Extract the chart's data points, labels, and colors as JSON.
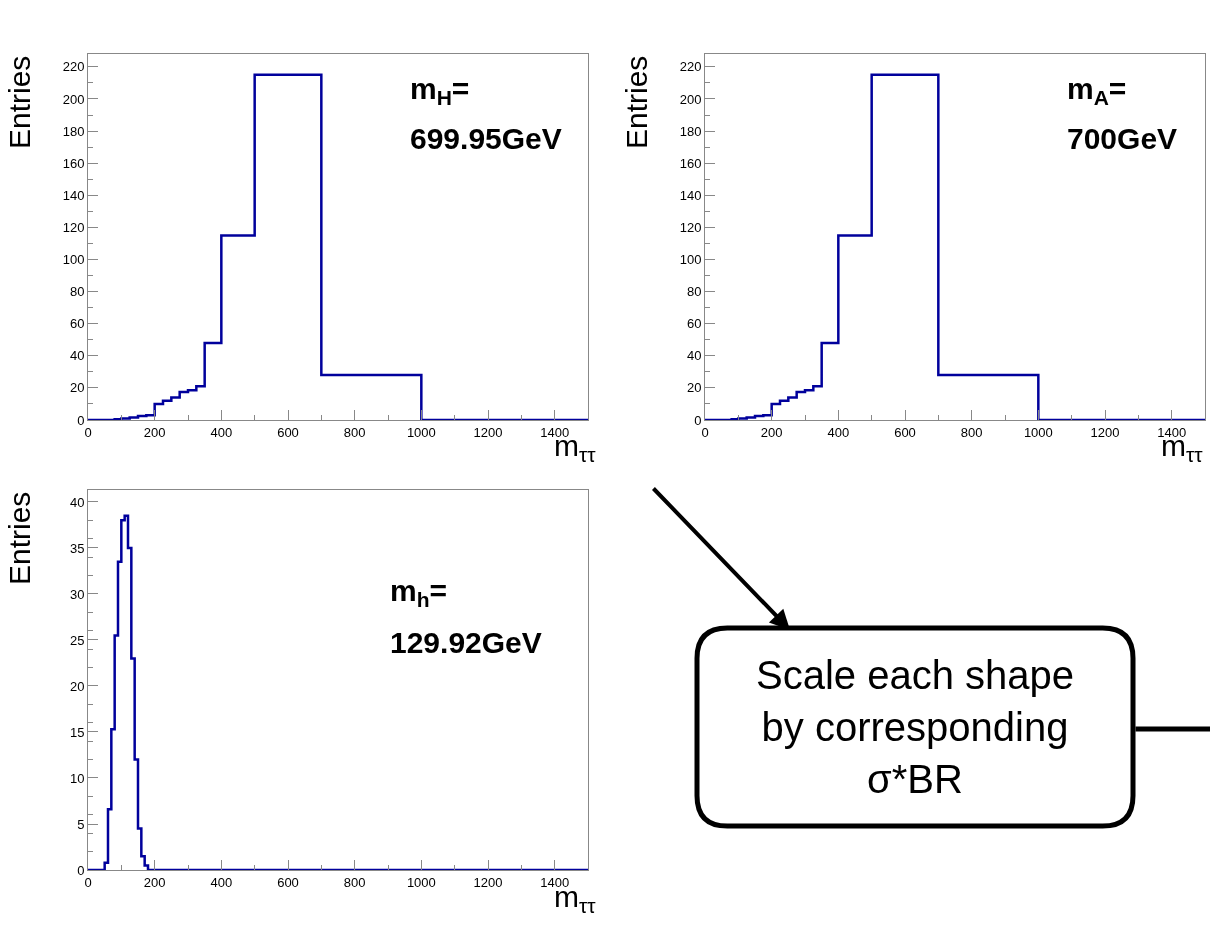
{
  "chart_data": [
    {
      "type": "histogram",
      "xlabel": "m$_{ττ}$",
      "ylabel": "Entries",
      "annotations": [
        "m$_{H}$=",
        "699.95GeV"
      ],
      "bins": [
        0,
        80,
        100,
        125,
        150,
        175,
        200,
        225,
        250,
        275,
        300,
        325,
        350,
        400,
        500,
        700,
        1000,
        1500
      ],
      "values": [
        0,
        0.5,
        1,
        1.5,
        2.5,
        3,
        10,
        12,
        14,
        17.5,
        18.5,
        21,
        48,
        115,
        215,
        28,
        0
      ],
      "color": "#00009c",
      "xlim": [
        0,
        1500
      ],
      "ylim": [
        0,
        228
      ],
      "xticks": [
        0,
        200,
        400,
        600,
        800,
        1000,
        1200,
        1400
      ],
      "yticks": [
        0,
        20,
        40,
        60,
        80,
        100,
        120,
        140,
        160,
        180,
        200,
        220
      ],
      "grid": false
    },
    {
      "type": "histogram",
      "xlabel": "m$_{ττ}$",
      "ylabel": "Entries",
      "annotations": [
        "m$_{A}$=",
        "700GeV"
      ],
      "bins": [
        0,
        80,
        100,
        125,
        150,
        175,
        200,
        225,
        250,
        275,
        300,
        325,
        350,
        400,
        500,
        700,
        1000,
        1500
      ],
      "values": [
        0,
        0.5,
        1,
        1.5,
        2.5,
        3,
        10,
        12,
        14,
        17.5,
        18.5,
        21,
        48,
        115,
        215,
        28,
        0
      ],
      "color": "#00009c",
      "xlim": [
        0,
        1500
      ],
      "ylim": [
        0,
        228
      ],
      "xticks": [
        0,
        200,
        400,
        600,
        800,
        1000,
        1200,
        1400
      ],
      "yticks": [
        0,
        20,
        40,
        60,
        80,
        100,
        120,
        140,
        160,
        180,
        200,
        220
      ],
      "grid": false
    },
    {
      "type": "histogram",
      "xlabel": "m$_{ττ}$",
      "ylabel": "Entries",
      "annotations": [
        "m$_{h}$=",
        "129.92GeV"
      ],
      "bins": [
        0,
        50,
        60,
        70,
        80,
        90,
        100,
        110,
        120,
        130,
        140,
        150,
        160,
        170,
        180,
        1500
      ],
      "values": [
        0,
        0.8,
        6.6,
        15.3,
        25.5,
        33.5,
        38,
        38.5,
        35,
        23,
        12,
        4.5,
        1.5,
        0.5,
        0
      ],
      "color": "#00009c",
      "xlim": [
        0,
        1500
      ],
      "ylim": [
        0,
        41.3
      ],
      "xticks": [
        0,
        200,
        400,
        600,
        800,
        1000,
        1200,
        1400
      ],
      "yticks": [
        0,
        5,
        10,
        15,
        20,
        25,
        30,
        35,
        40
      ],
      "grid": false
    },
    {
      "type": "other",
      "annotations": [
        "Scale each shape by corresponding σ*BR"
      ]
    }
  ]
}
